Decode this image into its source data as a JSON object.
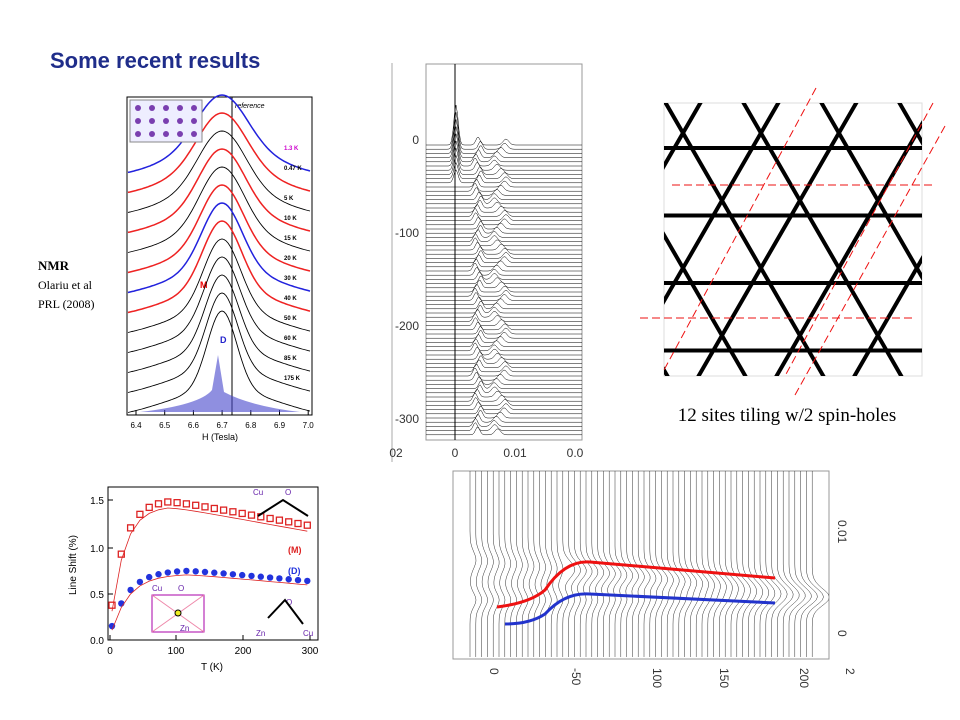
{
  "title": "Some recent results",
  "nmr_note": {
    "name": "NMR",
    "authors": "Olariu et al",
    "reference": "PRL (2008)"
  },
  "caption": "12 sites tiling w/2 spin-holes",
  "nmr_figure": {
    "x_label": "H (Tesla)",
    "x_ticks": [
      "6.4",
      "6.5",
      "6.6",
      "6.7",
      "6.8",
      "6.9",
      "7.0"
    ],
    "reference": "reference",
    "peak_m": "M",
    "peak_d": "D",
    "temperatures": [
      "1.3 K",
      "0.47 K",
      "5 K",
      "10 K",
      "15 K",
      "20 K",
      "30 K",
      "40 K",
      "50 K",
      "60 K",
      "85 K",
      "175 K"
    ]
  },
  "waterfall_top": {
    "y_ticks": [
      "0",
      "-100",
      "-200",
      "-300"
    ],
    "x_ticks": [
      "02",
      "0",
      "0.01",
      "0.0"
    ]
  },
  "line_shift_figure": {
    "y_label": "Line Shift (%)",
    "y_ticks": [
      "0.0",
      "0.5",
      "1.0",
      "1.5"
    ],
    "x_label": "T (K)",
    "x_ticks": [
      "0",
      "100",
      "200",
      "300"
    ],
    "series_m": "(M)",
    "series_d": "(D)",
    "atoms": [
      "Cu",
      "O",
      "Zn"
    ]
  },
  "waterfall_bottom": {
    "x_ticks": [
      "0",
      "-50",
      "100",
      "150",
      "200",
      "2"
    ],
    "y_ticks": [
      "0.01",
      "0"
    ]
  }
}
